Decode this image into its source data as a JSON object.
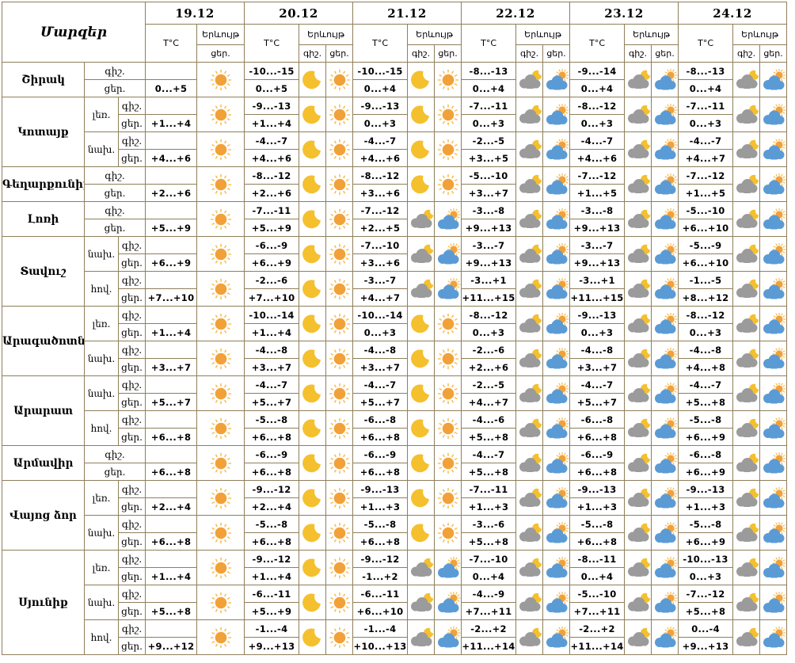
{
  "header": {
    "regions_title": "Մարզեր",
    "temp_label": "T°C",
    "phenomenon_label": "Երևույթ",
    "night_label": "գիշ.",
    "day_label": "ցեր.",
    "dates": [
      "19.12",
      "20.12",
      "21.12",
      "22.12",
      "23.12",
      "24.12"
    ]
  },
  "colors": {
    "border": "#8F7F5B",
    "sun_core": "#F2A139",
    "sun_rays": "#F7BE56",
    "moon": "#F5C02E",
    "cloud_gray": "#9B9B9B",
    "cloud_blue": "#5B9BD5",
    "text": "#000000",
    "background": "#FFFFFF"
  },
  "icon_glossary": {
    "sun": "clear day",
    "moon": "clear night",
    "cloud-sun": "partly cloudy day",
    "cloud-moon": "partly cloudy night"
  },
  "rows": [
    {
      "region": "Շիրակ",
      "span": 1,
      "zone": null,
      "days": [
        {
          "n": null,
          "d": "0...+5",
          "ni": null,
          "di": "sun"
        },
        {
          "n": "-10...-15",
          "d": "0...+5",
          "ni": "moon",
          "di": "sun"
        },
        {
          "n": "-10...-15",
          "d": "0...+4",
          "ni": "moon",
          "di": "sun"
        },
        {
          "n": "-8...-13",
          "d": "0...+4",
          "ni": "cloud-moon",
          "di": "cloud-sun"
        },
        {
          "n": "-9...-14",
          "d": "0...+4",
          "ni": "cloud-moon",
          "di": "cloud-sun"
        },
        {
          "n": "-8...-13",
          "d": "0...+4",
          "ni": "cloud-moon",
          "di": "cloud-sun"
        }
      ]
    },
    {
      "region": "Կոտայք",
      "span": 2,
      "zone": "լեռ.",
      "days": [
        {
          "n": null,
          "d": "+1...+4",
          "ni": null,
          "di": "sun"
        },
        {
          "n": "-9...-13",
          "d": "+1...+4",
          "ni": "moon",
          "di": "sun"
        },
        {
          "n": "-9...-13",
          "d": "0...+3",
          "ni": "moon",
          "di": "sun"
        },
        {
          "n": "-7...-11",
          "d": "0...+3",
          "ni": "cloud-moon",
          "di": "cloud-sun"
        },
        {
          "n": "-8...-12",
          "d": "0...+3",
          "ni": "cloud-moon",
          "di": "cloud-sun"
        },
        {
          "n": "-7...-11",
          "d": "0...+3",
          "ni": "cloud-moon",
          "di": "cloud-sun"
        }
      ]
    },
    {
      "region": null,
      "span": 0,
      "zone": "նախ.",
      "days": [
        {
          "n": null,
          "d": "+4...+6",
          "ni": null,
          "di": "sun"
        },
        {
          "n": "-4...-7",
          "d": "+4...+6",
          "ni": "moon",
          "di": "sun"
        },
        {
          "n": "-4...-7",
          "d": "+4...+6",
          "ni": "moon",
          "di": "sun"
        },
        {
          "n": "-2...-5",
          "d": "+3...+5",
          "ni": "cloud-moon",
          "di": "cloud-sun"
        },
        {
          "n": "-4...-7",
          "d": "+4...+6",
          "ni": "cloud-moon",
          "di": "cloud-sun"
        },
        {
          "n": "-4...-7",
          "d": "+4...+7",
          "ni": "cloud-moon",
          "di": "cloud-sun"
        }
      ]
    },
    {
      "region": "Գեղարքունիք",
      "span": 1,
      "zone": null,
      "days": [
        {
          "n": null,
          "d": "+2...+6",
          "ni": null,
          "di": "sun"
        },
        {
          "n": "-8...-12",
          "d": "+2...+6",
          "ni": "moon",
          "di": "sun"
        },
        {
          "n": "-8...-12",
          "d": "+3...+6",
          "ni": "moon",
          "di": "sun"
        },
        {
          "n": "-5...-10",
          "d": "+3...+7",
          "ni": "cloud-moon",
          "di": "cloud-sun"
        },
        {
          "n": "-7...-12",
          "d": "+1...+5",
          "ni": "cloud-moon",
          "di": "cloud-sun"
        },
        {
          "n": "-7...-12",
          "d": "+1...+5",
          "ni": "cloud-moon",
          "di": "cloud-sun"
        }
      ]
    },
    {
      "region": "Լոռի",
      "span": 1,
      "zone": null,
      "days": [
        {
          "n": null,
          "d": "+5...+9",
          "ni": null,
          "di": "sun"
        },
        {
          "n": "-7...-11",
          "d": "+5...+9",
          "ni": "moon",
          "di": "sun"
        },
        {
          "n": "-7...-12",
          "d": "+2...+5",
          "ni": "cloud-moon",
          "di": "cloud-sun"
        },
        {
          "n": "-3...-8",
          "d": "+9...+13",
          "ni": "cloud-moon",
          "di": "cloud-sun"
        },
        {
          "n": "-3...-8",
          "d": "+9...+13",
          "ni": "cloud-moon",
          "di": "cloud-sun"
        },
        {
          "n": "-5...-10",
          "d": "+6...+10",
          "ni": "cloud-moon",
          "di": "cloud-sun"
        }
      ]
    },
    {
      "region": "Տավուշ",
      "span": 2,
      "zone": "նախ.",
      "days": [
        {
          "n": null,
          "d": "+6...+9",
          "ni": null,
          "di": "sun"
        },
        {
          "n": "-6...-9",
          "d": "+6...+9",
          "ni": "moon",
          "di": "sun"
        },
        {
          "n": "-7...-10",
          "d": "+3...+6",
          "ni": "cloud-moon",
          "di": "cloud-sun"
        },
        {
          "n": "-3...-7",
          "d": "+9...+13",
          "ni": "cloud-moon",
          "di": "cloud-sun"
        },
        {
          "n": "-3...-7",
          "d": "+9...+13",
          "ni": "cloud-moon",
          "di": "cloud-sun"
        },
        {
          "n": "-5...-9",
          "d": "+6...+10",
          "ni": "cloud-moon",
          "di": "cloud-sun"
        }
      ]
    },
    {
      "region": null,
      "span": 0,
      "zone": "հով.",
      "days": [
        {
          "n": null,
          "d": "+7...+10",
          "ni": null,
          "di": "sun"
        },
        {
          "n": "-2...-6",
          "d": "+7...+10",
          "ni": "moon",
          "di": "sun"
        },
        {
          "n": "-3...-7",
          "d": "+4...+7",
          "ni": "cloud-moon",
          "di": "cloud-sun"
        },
        {
          "n": "-3...+1",
          "d": "+11...+15",
          "ni": "cloud-moon",
          "di": "cloud-sun"
        },
        {
          "n": "-3...+1",
          "d": "+11...+15",
          "ni": "cloud-moon",
          "di": "cloud-sun"
        },
        {
          "n": "-1...-5",
          "d": "+8...+12",
          "ni": "cloud-moon",
          "di": "cloud-sun"
        }
      ]
    },
    {
      "region": "Արագածոտն",
      "span": 2,
      "zone": "լեռ.",
      "days": [
        {
          "n": null,
          "d": "+1...+4",
          "ni": null,
          "di": "sun"
        },
        {
          "n": "-10...-14",
          "d": "+1...+4",
          "ni": "moon",
          "di": "sun"
        },
        {
          "n": "-10...-14",
          "d": "0...+3",
          "ni": "moon",
          "di": "sun"
        },
        {
          "n": "-8...-12",
          "d": "0...+3",
          "ni": "cloud-moon",
          "di": "cloud-sun"
        },
        {
          "n": "-9...-13",
          "d": "0...+3",
          "ni": "cloud-moon",
          "di": "cloud-sun"
        },
        {
          "n": "-8...-12",
          "d": "0...+3",
          "ni": "cloud-moon",
          "di": "cloud-sun"
        }
      ]
    },
    {
      "region": null,
      "span": 0,
      "zone": "նախ.",
      "days": [
        {
          "n": null,
          "d": "+3...+7",
          "ni": null,
          "di": "sun"
        },
        {
          "n": "-4...-8",
          "d": "+3...+7",
          "ni": "moon",
          "di": "sun"
        },
        {
          "n": "-4...-8",
          "d": "+3...+7",
          "ni": "moon",
          "di": "sun"
        },
        {
          "n": "-2...-6",
          "d": "+2...+6",
          "ni": "cloud-moon",
          "di": "cloud-sun"
        },
        {
          "n": "-4...-8",
          "d": "+3...+7",
          "ni": "cloud-moon",
          "di": "cloud-sun"
        },
        {
          "n": "-4...-8",
          "d": "+4...+8",
          "ni": "cloud-moon",
          "di": "cloud-sun"
        }
      ]
    },
    {
      "region": "Արարատ",
      "span": 2,
      "zone": "նախ.",
      "days": [
        {
          "n": null,
          "d": "+5...+7",
          "ni": null,
          "di": "sun"
        },
        {
          "n": "-4...-7",
          "d": "+5...+7",
          "ni": "moon",
          "di": "sun"
        },
        {
          "n": "-4...-7",
          "d": "+5...+7",
          "ni": "moon",
          "di": "sun"
        },
        {
          "n": "-2...-5",
          "d": "+4...+7",
          "ni": "cloud-moon",
          "di": "cloud-sun"
        },
        {
          "n": "-4...-7",
          "d": "+5...+7",
          "ni": "cloud-moon",
          "di": "cloud-sun"
        },
        {
          "n": "-4...-7",
          "d": "+5...+8",
          "ni": "cloud-moon",
          "di": "cloud-sun"
        }
      ]
    },
    {
      "region": null,
      "span": 0,
      "zone": "հով.",
      "days": [
        {
          "n": null,
          "d": "+6...+8",
          "ni": null,
          "di": "sun"
        },
        {
          "n": "-5...-8",
          "d": "+6...+8",
          "ni": "moon",
          "di": "sun"
        },
        {
          "n": "-6...-8",
          "d": "+6...+8",
          "ni": "moon",
          "di": "sun"
        },
        {
          "n": "-4...-6",
          "d": "+5...+8",
          "ni": "cloud-moon",
          "di": "cloud-sun"
        },
        {
          "n": "-6...-8",
          "d": "+6...+8",
          "ni": "cloud-moon",
          "di": "cloud-sun"
        },
        {
          "n": "-5...-8",
          "d": "+6...+9",
          "ni": "cloud-moon",
          "di": "cloud-sun"
        }
      ]
    },
    {
      "region": "Արմավիր",
      "span": 1,
      "zone": null,
      "days": [
        {
          "n": null,
          "d": "+6...+8",
          "ni": null,
          "di": "sun"
        },
        {
          "n": "-6...-9",
          "d": "+6...+8",
          "ni": "moon",
          "di": "sun"
        },
        {
          "n": "-6...-9",
          "d": "+6...+8",
          "ni": "moon",
          "di": "sun"
        },
        {
          "n": "-4...-7",
          "d": "+5...+8",
          "ni": "cloud-moon",
          "di": "cloud-sun"
        },
        {
          "n": "-6...-9",
          "d": "+6...+8",
          "ni": "cloud-moon",
          "di": "cloud-sun"
        },
        {
          "n": "-6...-8",
          "d": "+6...+9",
          "ni": "cloud-moon",
          "di": "cloud-sun"
        }
      ]
    },
    {
      "region": "Վայոց ձոր",
      "span": 2,
      "zone": "լեռ.",
      "days": [
        {
          "n": null,
          "d": "+2...+4",
          "ni": null,
          "di": "sun"
        },
        {
          "n": "-9...-12",
          "d": "+2...+4",
          "ni": "moon",
          "di": "sun"
        },
        {
          "n": "-9...-13",
          "d": "+1...+3",
          "ni": "moon",
          "di": "sun"
        },
        {
          "n": "-7...-11",
          "d": "+1...+3",
          "ni": "cloud-moon",
          "di": "cloud-sun"
        },
        {
          "n": "-9...-13",
          "d": "+1...+3",
          "ni": "cloud-moon",
          "di": "cloud-sun"
        },
        {
          "n": "-9...-13",
          "d": "+1...+3",
          "ni": "cloud-moon",
          "di": "cloud-sun"
        }
      ]
    },
    {
      "region": null,
      "span": 0,
      "zone": "նախ.",
      "days": [
        {
          "n": null,
          "d": "+6...+8",
          "ni": null,
          "di": "sun"
        },
        {
          "n": "-5...-8",
          "d": "+6...+8",
          "ni": "moon",
          "di": "sun"
        },
        {
          "n": "-5...-8",
          "d": "+6...+8",
          "ni": "moon",
          "di": "sun"
        },
        {
          "n": "-3...-6",
          "d": "+5...+8",
          "ni": "cloud-moon",
          "di": "cloud-sun"
        },
        {
          "n": "-5...-8",
          "d": "+6...+8",
          "ni": "cloud-moon",
          "di": "cloud-sun"
        },
        {
          "n": "-5...-8",
          "d": "+6...+9",
          "ni": "cloud-moon",
          "di": "cloud-sun"
        }
      ]
    },
    {
      "region": "Սյունիք",
      "span": 3,
      "zone": "լեռ.",
      "days": [
        {
          "n": null,
          "d": "+1...+4",
          "ni": null,
          "di": "sun"
        },
        {
          "n": "-9...-12",
          "d": "+1...+4",
          "ni": "moon",
          "di": "sun"
        },
        {
          "n": "-9...-12",
          "d": "-1...+2",
          "ni": "cloud-moon",
          "di": "cloud-sun"
        },
        {
          "n": "-7...-10",
          "d": "0...+4",
          "ni": "cloud-moon",
          "di": "cloud-sun"
        },
        {
          "n": "-8...-11",
          "d": "0...+4",
          "ni": "cloud-moon",
          "di": "cloud-sun"
        },
        {
          "n": "-10...-13",
          "d": "0...+3",
          "ni": "cloud-moon",
          "di": "cloud-sun"
        }
      ]
    },
    {
      "region": null,
      "span": 0,
      "zone": "նախ.",
      "days": [
        {
          "n": null,
          "d": "+5...+8",
          "ni": null,
          "di": "sun"
        },
        {
          "n": "-6...-11",
          "d": "+5...+9",
          "ni": "moon",
          "di": "sun"
        },
        {
          "n": "-6...-11",
          "d": "+6...+10",
          "ni": "cloud-moon",
          "di": "cloud-sun"
        },
        {
          "n": "-4...-9",
          "d": "+7...+11",
          "ni": "cloud-moon",
          "di": "cloud-sun"
        },
        {
          "n": "-5...-10",
          "d": "+7...+11",
          "ni": "cloud-moon",
          "di": "cloud-sun"
        },
        {
          "n": "-7...-12",
          "d": "+5...+8",
          "ni": "cloud-moon",
          "di": "cloud-sun"
        }
      ]
    },
    {
      "region": null,
      "span": 0,
      "zone": "հով.",
      "days": [
        {
          "n": null,
          "d": "+9...+12",
          "ni": null,
          "di": "sun"
        },
        {
          "n": "-1...-4",
          "d": "+9...+13",
          "ni": "moon",
          "di": "sun"
        },
        {
          "n": "-1...-4",
          "d": "+10...+13",
          "ni": "cloud-moon",
          "di": "cloud-sun"
        },
        {
          "n": "-2...+2",
          "d": "+11...+14",
          "ni": "cloud-moon",
          "di": "cloud-sun"
        },
        {
          "n": "-2...+2",
          "d": "+11...+14",
          "ni": "cloud-moon",
          "di": "cloud-sun"
        },
        {
          "n": "0...-4",
          "d": "+9...+13",
          "ni": "cloud-moon",
          "di": "cloud-sun"
        }
      ]
    }
  ]
}
